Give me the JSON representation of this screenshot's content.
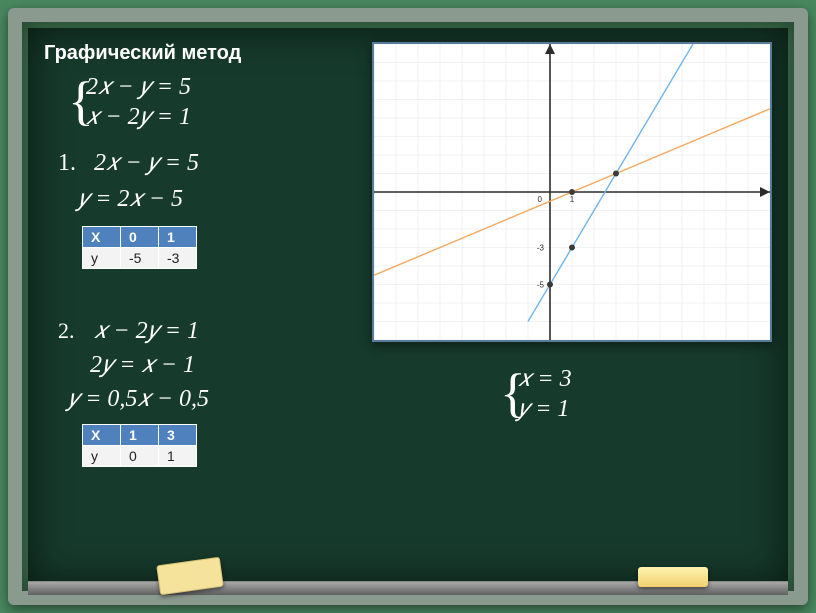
{
  "title": "Графический метод",
  "system": {
    "eq1": "2𝑥 − 𝑦 = 5",
    "eq2": "𝑥 − 2𝑦 = 1"
  },
  "step1": {
    "num": "1.",
    "eq": "2𝑥 − 𝑦 = 5",
    "solved": "𝑦 = 2𝑥 − 5"
  },
  "table1": {
    "headers": [
      "X",
      "0",
      "1"
    ],
    "row_label": "y",
    "row": [
      "-5",
      "-3"
    ]
  },
  "step2": {
    "num": "2.",
    "eq": "𝑥 − 2𝑦 = 1",
    "mid": "2𝑦 = 𝑥 − 1",
    "solved": "𝑦 = 0,5𝑥 − 0,5"
  },
  "table2": {
    "headers": [
      "X",
      "1",
      "3"
    ],
    "row_label": "y",
    "row": [
      "0",
      "1"
    ]
  },
  "answer": {
    "x": "𝑥 = 3",
    "y": "𝑦 = 1"
  },
  "chart": {
    "type": "line",
    "xlim": [
      -8,
      10
    ],
    "ylim": [
      -8,
      8
    ],
    "grid_step": 1,
    "background_color": "#ffffff",
    "grid_color": "#e0e4ea",
    "axis_color": "#2b2b2b",
    "origin_label": "0",
    "tick_x_label": "1",
    "tick_y_labels": {
      "-3": "-3",
      "-5": "-5"
    },
    "label_fontsize": 8,
    "axis_width": 1.6,
    "grid_width": 0.5,
    "lines": [
      {
        "name": "2x-5",
        "color": "#6fb6e8",
        "width": 1.4,
        "p1": [
          -1,
          -7
        ],
        "p2": [
          6.5,
          8
        ]
      },
      {
        "name": "0.5x-0.5",
        "color": "#f4a960",
        "width": 1.4,
        "p1": [
          -8,
          -4.5
        ],
        "p2": [
          10,
          4.5
        ]
      }
    ],
    "points": [
      {
        "x": 0,
        "y": -5,
        "r": 3,
        "fill": "#3a3a3a"
      },
      {
        "x": 1,
        "y": -3,
        "r": 3,
        "fill": "#3a3a3a"
      },
      {
        "x": 1,
        "y": 0,
        "r": 3,
        "fill": "#3a3a3a"
      },
      {
        "x": 3,
        "y": 1,
        "r": 3,
        "fill": "#3a3a3a"
      }
    ]
  },
  "colors": {
    "board": "#163a2b",
    "frame": "#8b9a8e",
    "text": "#ffffff",
    "th_bg": "#4f81bd",
    "td_bg": "#f3f3f3"
  }
}
